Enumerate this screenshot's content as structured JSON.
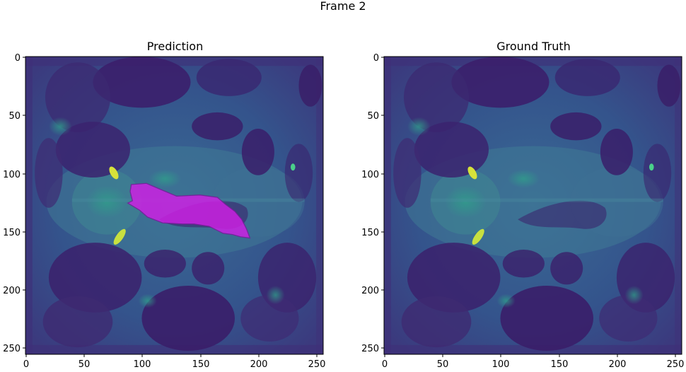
{
  "figure": {
    "suptitle": "Frame 2",
    "colormap": "viridis",
    "overlay_color": "#d21ee6",
    "panels": [
      {
        "title": "Prediction",
        "has_overlay": true,
        "x_ticks": [
          "0",
          "50",
          "100",
          "150",
          "200",
          "250"
        ],
        "y_ticks": [
          "0",
          "50",
          "100",
          "150",
          "200",
          "250"
        ]
      },
      {
        "title": "Ground Truth",
        "has_overlay": false,
        "x_ticks": [
          "0",
          "50",
          "100",
          "150",
          "200",
          "250"
        ],
        "y_ticks": [
          "0",
          "50",
          "100",
          "150",
          "200",
          "250"
        ]
      }
    ]
  }
}
